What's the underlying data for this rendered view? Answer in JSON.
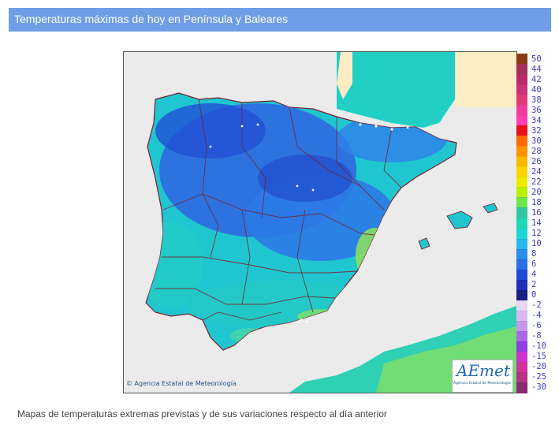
{
  "header": {
    "title": "Temperaturas máximas de hoy en Península y Baleares"
  },
  "map": {
    "copyright": "© Agencia Estatal de Meteorología",
    "logo": {
      "wordmark": "AEmet",
      "subtitle": "Agencia Estatal de Meteorología"
    },
    "colors": {
      "sea": "#ebebeb",
      "land_cool": "#2e6fe0",
      "land_mild": "#1fbdd8",
      "land_warm": "#2fd0b4",
      "land_hot": "#9ee840",
      "africa": "#fdecc4"
    }
  },
  "legend": {
    "entries": [
      {
        "label": "50",
        "color": "#8a3b16"
      },
      {
        "label": "44",
        "color": "#a3305a"
      },
      {
        "label": "42",
        "color": "#b82c6a"
      },
      {
        "label": "40",
        "color": "#c83478"
      },
      {
        "label": "38",
        "color": "#e03c7a"
      },
      {
        "label": "36",
        "color": "#f03c9a"
      },
      {
        "label": "34",
        "color": "#ff3fb0"
      },
      {
        "label": "32",
        "color": "#e8131a"
      },
      {
        "label": "30",
        "color": "#ff6a00"
      },
      {
        "label": "28",
        "color": "#ff9400"
      },
      {
        "label": "26",
        "color": "#ffb800"
      },
      {
        "label": "24",
        "color": "#ffd400"
      },
      {
        "label": "22",
        "color": "#f0ea00"
      },
      {
        "label": "20",
        "color": "#b9f000"
      },
      {
        "label": "18",
        "color": "#6de64a"
      },
      {
        "label": "16",
        "color": "#33c6a0"
      },
      {
        "label": "14",
        "color": "#21d6b2"
      },
      {
        "label": "12",
        "color": "#1fd6d6"
      },
      {
        "label": "10",
        "color": "#27b8ee"
      },
      {
        "label": "8",
        "color": "#2a8ee8"
      },
      {
        "label": "6",
        "color": "#2a6fe4"
      },
      {
        "label": "4",
        "color": "#1f4bd6"
      },
      {
        "label": "2",
        "color": "#1d2fb8"
      },
      {
        "label": "0",
        "color": "#162080"
      },
      {
        "label": "-2",
        "color": "#e8d6f4"
      },
      {
        "label": "-4",
        "color": "#d9b8f0"
      },
      {
        "label": "-6",
        "color": "#c696ec"
      },
      {
        "label": "-8",
        "color": "#a86ae4"
      },
      {
        "label": "-10",
        "color": "#9040dc"
      },
      {
        "label": "-15",
        "color": "#cc33cc"
      },
      {
        "label": "-20",
        "color": "#d033a0"
      },
      {
        "label": "-25",
        "color": "#b83388"
      },
      {
        "label": "-30",
        "color": "#8a2a70"
      }
    ]
  },
  "footer": {
    "caption": "Mapas de temperaturas extremas previstas y de sus variaciones respecto al día anterior"
  }
}
